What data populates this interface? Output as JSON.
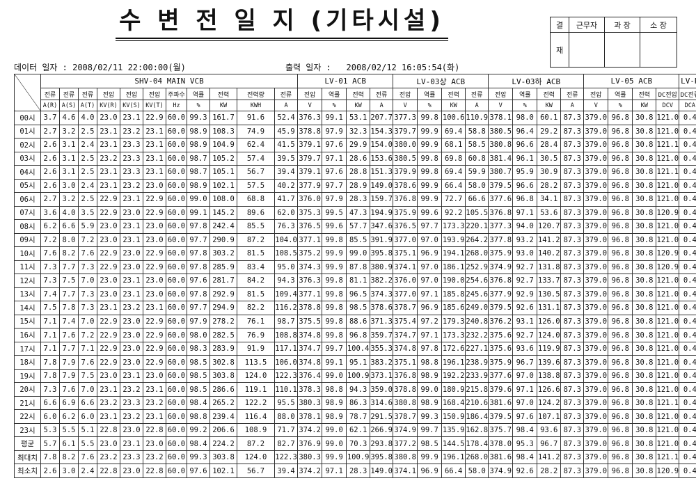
{
  "title": "수 변 전 일 지 (기타시설)",
  "approval": {
    "left_label_top": "결",
    "left_label_bottom": "재",
    "headers": [
      "근무자",
      "과  장",
      "소  장"
    ]
  },
  "meta": {
    "data_date_label": "데이터 일자 :",
    "data_date": "2008/02/11 22:00:00(월)",
    "print_date_label": "출력 일자 :",
    "print_date": "2008/02/12 16:05:54(화)"
  },
  "groups": [
    {
      "label": "SHV-04 MAIN VCB",
      "span": 11
    },
    {
      "label": "LV-01 ACB",
      "span": 4
    },
    {
      "label": "LV-03상 ACB",
      "span": 4
    },
    {
      "label": "LV-03하 ACB",
      "span": 4
    },
    {
      "label": "LV-05 ACB",
      "span": 4
    },
    {
      "label": "LV-R",
      "span": 2
    }
  ],
  "column_headers": [
    "전류",
    "전류",
    "전류",
    "전압",
    "전압",
    "전압",
    "주파수",
    "역률",
    "전력",
    "전력량",
    "전류",
    "전압",
    "역률",
    "전력",
    "전류",
    "전압",
    "역률",
    "전력",
    "전류",
    "전압",
    "역률",
    "전력",
    "전류",
    "전압",
    "역률",
    "전력",
    "DC전압",
    "DC전류"
  ],
  "unit_headers": [
    "A(R)",
    "A(S)",
    "A(T)",
    "KV(R)",
    "KV(S)",
    "KV(T)",
    "Hz",
    "%",
    "KW",
    "KWH",
    "A",
    "V",
    "%",
    "KW",
    "A",
    "V",
    "%",
    "KW",
    "A",
    "V",
    "%",
    "KW",
    "A",
    "V",
    "%",
    "KW",
    "DCV",
    "DCA"
  ],
  "rows": [
    {
      "label": "00시",
      "values": [
        "3.7",
        "4.6",
        "4.0",
        "23.0",
        "23.1",
        "22.9",
        "60.0",
        "99.3",
        "161.7",
        "91.6",
        "52.4",
        "376.3",
        "99.1",
        "53.1",
        "207.7",
        "377.3",
        "99.8",
        "100.6",
        "110.9",
        "378.1",
        "98.0",
        "60.1",
        "87.3",
        "379.0",
        "96.8",
        "30.8",
        "121.0",
        "0.4"
      ]
    },
    {
      "label": "01시",
      "values": [
        "2.7",
        "3.2",
        "2.5",
        "23.1",
        "23.2",
        "23.1",
        "60.0",
        "98.9",
        "108.3",
        "74.9",
        "45.9",
        "378.8",
        "97.9",
        "32.3",
        "154.3",
        "379.7",
        "99.9",
        "69.4",
        "58.8",
        "380.5",
        "96.4",
        "29.2",
        "87.3",
        "379.0",
        "96.8",
        "30.8",
        "121.0",
        "0.4"
      ]
    },
    {
      "label": "02시",
      "values": [
        "2.6",
        "3.1",
        "2.4",
        "23.1",
        "23.3",
        "23.1",
        "60.0",
        "98.9",
        "104.9",
        "62.4",
        "41.5",
        "379.1",
        "97.6",
        "29.9",
        "154.0",
        "380.0",
        "99.9",
        "68.1",
        "58.5",
        "380.8",
        "96.6",
        "28.4",
        "87.3",
        "379.0",
        "96.8",
        "30.8",
        "121.1",
        "0.4"
      ]
    },
    {
      "label": "03시",
      "values": [
        "2.6",
        "3.1",
        "2.5",
        "23.2",
        "23.3",
        "23.1",
        "60.0",
        "98.7",
        "105.2",
        "57.4",
        "39.5",
        "379.7",
        "97.1",
        "28.6",
        "153.6",
        "380.5",
        "99.8",
        "69.8",
        "60.8",
        "381.4",
        "96.1",
        "30.5",
        "87.3",
        "379.0",
        "96.8",
        "30.8",
        "121.0",
        "0.4"
      ]
    },
    {
      "label": "04시",
      "values": [
        "2.6",
        "3.1",
        "2.5",
        "23.1",
        "23.3",
        "23.1",
        "60.0",
        "98.7",
        "105.1",
        "56.7",
        "39.4",
        "379.1",
        "97.6",
        "28.8",
        "151.3",
        "379.9",
        "99.8",
        "69.4",
        "59.9",
        "380.7",
        "95.9",
        "30.9",
        "87.3",
        "379.0",
        "96.8",
        "30.8",
        "121.1",
        "0.4"
      ]
    },
    {
      "label": "05시",
      "values": [
        "2.6",
        "3.0",
        "2.4",
        "23.1",
        "23.2",
        "23.0",
        "60.0",
        "98.9",
        "102.1",
        "57.5",
        "40.2",
        "377.9",
        "97.7",
        "28.9",
        "149.0",
        "378.6",
        "99.9",
        "66.4",
        "58.0",
        "379.5",
        "96.6",
        "28.2",
        "87.3",
        "379.0",
        "96.8",
        "30.8",
        "121.0",
        "0.4"
      ]
    },
    {
      "label": "06시",
      "values": [
        "2.7",
        "3.2",
        "2.5",
        "22.9",
        "23.1",
        "22.9",
        "60.0",
        "99.0",
        "108.0",
        "68.8",
        "41.7",
        "376.0",
        "97.9",
        "28.3",
        "159.7",
        "376.8",
        "99.9",
        "72.7",
        "66.6",
        "377.6",
        "96.8",
        "34.1",
        "87.3",
        "379.0",
        "96.8",
        "30.8",
        "121.0",
        "0.4"
      ]
    },
    {
      "label": "07시",
      "values": [
        "3.6",
        "4.0",
        "3.5",
        "22.9",
        "23.0",
        "22.9",
        "60.0",
        "99.1",
        "145.2",
        "89.6",
        "62.0",
        "375.3",
        "99.5",
        "47.3",
        "194.9",
        "375.9",
        "99.6",
        "92.2",
        "105.5",
        "376.8",
        "97.1",
        "53.6",
        "87.3",
        "379.0",
        "96.8",
        "30.8",
        "120.9",
        "0.4"
      ]
    },
    {
      "label": "08시",
      "values": [
        "6.2",
        "6.6",
        "5.9",
        "23.0",
        "23.1",
        "23.0",
        "60.0",
        "97.8",
        "242.4",
        "85.5",
        "76.3",
        "376.5",
        "99.6",
        "57.7",
        "347.6",
        "376.5",
        "97.7",
        "173.3",
        "220.1",
        "377.3",
        "94.0",
        "120.7",
        "87.3",
        "379.0",
        "96.8",
        "30.8",
        "121.0",
        "0.4"
      ]
    },
    {
      "label": "09시",
      "values": [
        "7.2",
        "8.0",
        "7.2",
        "23.0",
        "23.1",
        "23.0",
        "60.0",
        "97.7",
        "290.9",
        "87.2",
        "104.0",
        "377.1",
        "99.8",
        "85.5",
        "391.9",
        "377.0",
        "97.0",
        "193.9",
        "264.2",
        "377.8",
        "93.2",
        "141.2",
        "87.3",
        "379.0",
        "96.8",
        "30.8",
        "121.0",
        "0.4"
      ]
    },
    {
      "label": "10시",
      "values": [
        "7.6",
        "8.2",
        "7.6",
        "22.9",
        "23.0",
        "22.9",
        "60.0",
        "97.8",
        "303.2",
        "81.5",
        "108.5",
        "375.2",
        "99.9",
        "99.0",
        "395.8",
        "375.1",
        "96.9",
        "194.1",
        "268.0",
        "375.9",
        "93.0",
        "140.2",
        "87.3",
        "379.0",
        "96.8",
        "30.8",
        "120.9",
        "0.4"
      ]
    },
    {
      "label": "11시",
      "values": [
        "7.3",
        "7.7",
        "7.3",
        "22.9",
        "23.0",
        "22.9",
        "60.0",
        "97.8",
        "285.9",
        "83.4",
        "95.0",
        "374.3",
        "99.9",
        "87.8",
        "380.9",
        "374.1",
        "97.0",
        "186.1",
        "252.9",
        "374.9",
        "92.7",
        "131.8",
        "87.3",
        "379.0",
        "96.8",
        "30.8",
        "120.9",
        "0.4"
      ]
    },
    {
      "label": "12시",
      "values": [
        "7.3",
        "7.5",
        "7.0",
        "23.0",
        "23.1",
        "23.0",
        "60.0",
        "97.6",
        "281.7",
        "84.2",
        "94.3",
        "376.3",
        "99.8",
        "81.1",
        "382.2",
        "376.0",
        "97.0",
        "190.0",
        "254.6",
        "376.8",
        "92.7",
        "133.7",
        "87.3",
        "379.0",
        "96.8",
        "30.8",
        "121.0",
        "0.4"
      ]
    },
    {
      "label": "13시",
      "values": [
        "7.4",
        "7.7",
        "7.3",
        "23.0",
        "23.1",
        "23.0",
        "60.0",
        "97.8",
        "292.9",
        "81.5",
        "109.4",
        "377.1",
        "99.8",
        "96.5",
        "374.3",
        "377.0",
        "97.1",
        "185.8",
        "245.6",
        "377.9",
        "92.9",
        "130.5",
        "87.3",
        "379.0",
        "96.8",
        "30.8",
        "121.0",
        "0.4"
      ]
    },
    {
      "label": "14시",
      "values": [
        "7.5",
        "7.8",
        "7.3",
        "23.1",
        "23.2",
        "23.1",
        "60.0",
        "97.7",
        "294.9",
        "82.2",
        "116.2",
        "378.8",
        "99.8",
        "98.5",
        "378.6",
        "378.7",
        "96.9",
        "185.6",
        "249.0",
        "379.5",
        "92.6",
        "131.1",
        "87.3",
        "379.0",
        "96.8",
        "30.8",
        "121.0",
        "0.4"
      ]
    },
    {
      "label": "15시",
      "values": [
        "7.1",
        "7.4",
        "7.0",
        "22.9",
        "23.0",
        "22.9",
        "60.0",
        "97.9",
        "278.2",
        "76.1",
        "98.7",
        "375.5",
        "99.8",
        "88.6",
        "371.3",
        "375.4",
        "97.2",
        "179.3",
        "240.8",
        "376.2",
        "93.1",
        "126.0",
        "87.3",
        "379.0",
        "96.8",
        "30.8",
        "121.0",
        "0.4"
      ]
    },
    {
      "label": "16시",
      "values": [
        "7.1",
        "7.6",
        "7.2",
        "22.9",
        "23.0",
        "22.9",
        "60.0",
        "98.0",
        "282.5",
        "76.9",
        "108.8",
        "374.8",
        "99.8",
        "96.8",
        "359.7",
        "374.7",
        "97.1",
        "173.3",
        "232.2",
        "375.6",
        "92.7",
        "124.0",
        "87.3",
        "379.0",
        "96.8",
        "30.8",
        "121.0",
        "0.4"
      ]
    },
    {
      "label": "17시",
      "values": [
        "7.1",
        "7.7",
        "7.1",
        "22.9",
        "23.0",
        "22.9",
        "60.0",
        "98.3",
        "283.9",
        "91.9",
        "117.1",
        "374.7",
        "99.7",
        "100.4",
        "355.3",
        "374.8",
        "97.8",
        "172.6",
        "227.1",
        "375.6",
        "93.6",
        "119.9",
        "87.3",
        "379.0",
        "96.8",
        "30.8",
        "121.0",
        "0.4"
      ]
    },
    {
      "label": "18시",
      "values": [
        "7.8",
        "7.9",
        "7.6",
        "22.9",
        "23.0",
        "22.9",
        "60.0",
        "98.5",
        "302.8",
        "113.5",
        "106.0",
        "374.8",
        "99.1",
        "95.1",
        "383.2",
        "375.1",
        "98.8",
        "196.1",
        "238.9",
        "375.9",
        "96.7",
        "139.6",
        "87.3",
        "379.0",
        "96.8",
        "30.8",
        "121.0",
        "0.4"
      ]
    },
    {
      "label": "19시",
      "values": [
        "7.8",
        "7.9",
        "7.5",
        "23.0",
        "23.1",
        "23.0",
        "60.0",
        "98.5",
        "303.8",
        "124.0",
        "122.3",
        "376.4",
        "99.0",
        "100.9",
        "373.1",
        "376.8",
        "98.9",
        "192.2",
        "233.9",
        "377.6",
        "97.0",
        "138.8",
        "87.3",
        "379.0",
        "96.8",
        "30.8",
        "121.0",
        "0.4"
      ]
    },
    {
      "label": "20시",
      "values": [
        "7.3",
        "7.6",
        "7.0",
        "23.1",
        "23.2",
        "23.1",
        "60.0",
        "98.5",
        "286.6",
        "119.1",
        "110.1",
        "378.3",
        "98.8",
        "94.3",
        "359.0",
        "378.8",
        "99.0",
        "180.9",
        "215.8",
        "379.6",
        "97.1",
        "126.6",
        "87.3",
        "379.0",
        "96.8",
        "30.8",
        "121.0",
        "0.4"
      ]
    },
    {
      "label": "21시",
      "values": [
        "6.6",
        "6.9",
        "6.6",
        "23.2",
        "23.3",
        "23.2",
        "60.0",
        "98.4",
        "265.2",
        "122.2",
        "95.5",
        "380.3",
        "98.9",
        "86.3",
        "314.6",
        "380.8",
        "98.9",
        "168.4",
        "210.6",
        "381.6",
        "97.0",
        "124.2",
        "87.3",
        "379.0",
        "96.8",
        "30.8",
        "121.1",
        "0.4"
      ]
    },
    {
      "label": "22시",
      "values": [
        "6.0",
        "6.2",
        "6.0",
        "23.1",
        "23.2",
        "23.1",
        "60.0",
        "98.8",
        "239.4",
        "116.4",
        "88.0",
        "378.1",
        "98.9",
        "78.7",
        "291.5",
        "378.7",
        "99.3",
        "150.9",
        "186.4",
        "379.5",
        "97.6",
        "107.1",
        "87.3",
        "379.0",
        "96.8",
        "30.8",
        "121.0",
        "0.4"
      ]
    },
    {
      "label": "23시",
      "values": [
        "5.3",
        "5.5",
        "5.1",
        "22.8",
        "23.0",
        "22.8",
        "60.0",
        "99.2",
        "206.6",
        "108.9",
        "71.7",
        "374.2",
        "99.0",
        "62.1",
        "266.9",
        "374.9",
        "99.7",
        "135.9",
        "162.8",
        "375.7",
        "98.4",
        "93.6",
        "87.3",
        "379.0",
        "96.8",
        "30.8",
        "121.0",
        "0.4"
      ]
    },
    {
      "label": "평균",
      "values": [
        "5.7",
        "6.1",
        "5.5",
        "23.0",
        "23.1",
        "23.0",
        "60.0",
        "98.4",
        "224.2",
        "87.2",
        "82.7",
        "376.9",
        "99.0",
        "70.3",
        "293.8",
        "377.2",
        "98.5",
        "144.5",
        "178.4",
        "378.0",
        "95.3",
        "96.7",
        "87.3",
        "379.0",
        "96.8",
        "30.8",
        "121.0",
        "0.4"
      ]
    },
    {
      "label": "최대치",
      "values": [
        "7.8",
        "8.2",
        "7.6",
        "23.2",
        "23.3",
        "23.2",
        "60.0",
        "99.3",
        "303.8",
        "124.0",
        "122.3",
        "380.3",
        "99.9",
        "100.9",
        "395.8",
        "380.8",
        "99.9",
        "196.1",
        "268.0",
        "381.6",
        "98.4",
        "141.2",
        "87.3",
        "379.0",
        "96.8",
        "30.8",
        "121.1",
        "0.4"
      ]
    },
    {
      "label": "최소치",
      "values": [
        "2.6",
        "3.0",
        "2.4",
        "22.8",
        "23.0",
        "22.8",
        "60.0",
        "97.6",
        "102.1",
        "56.7",
        "39.4",
        "374.2",
        "97.1",
        "28.3",
        "149.0",
        "374.1",
        "96.9",
        "66.4",
        "58.0",
        "374.9",
        "92.6",
        "28.2",
        "87.3",
        "379.0",
        "96.8",
        "30.8",
        "120.9",
        "0.4"
      ]
    }
  ]
}
